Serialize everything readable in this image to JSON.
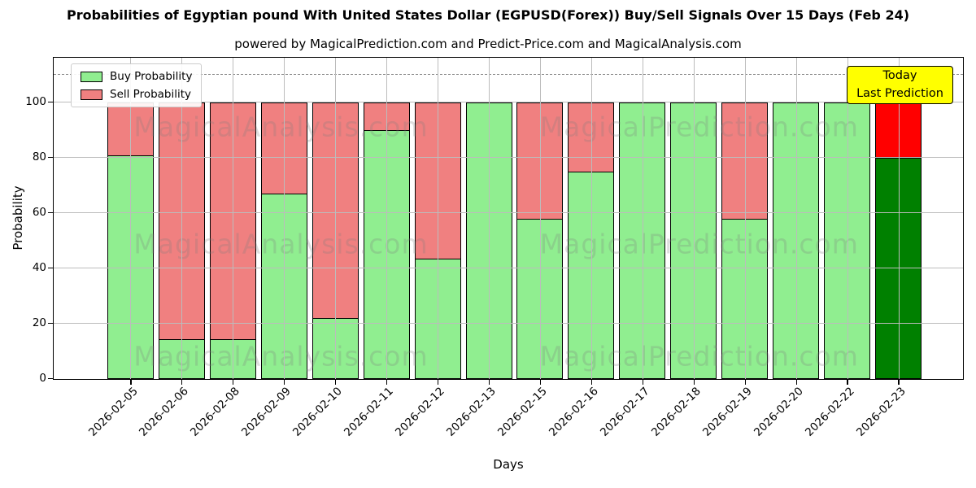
{
  "title": "Probabilities of Egyptian pound With United States Dollar (EGPUSD(Forex)) Buy/Sell Signals Over 15 Days (Feb 24)",
  "subtitle": "powered by MagicalPrediction.com and Predict-Price.com and MagicalAnalysis.com",
  "axes": {
    "ylabel": "Probability",
    "xlabel": "Days",
    "yticks": [
      0,
      20,
      40,
      60,
      80,
      100
    ],
    "ymax": 116,
    "dashed_line_y": 110
  },
  "legend": [
    {
      "label": "Buy Probability",
      "color": "#90EE90"
    },
    {
      "label": "Sell Probability",
      "color": "#F08080"
    }
  ],
  "annotation": {
    "line1": "Today",
    "line2": "Last Prediction",
    "bg": "#FFFF00"
  },
  "watermarks": {
    "left": "MagicalAnalysis.com",
    "right": "MagicalPrediction.com"
  },
  "colors": {
    "buy": "#90EE90",
    "sell": "#F08080",
    "buy_today": "#008000",
    "sell_today": "#FF0000",
    "grid": "#bcbcbc",
    "edge": "#000000"
  },
  "chart_data": {
    "type": "bar",
    "stacked": true,
    "title": "Probabilities of Egyptian pound With United States Dollar (EGPUSD(Forex)) Buy/Sell Signals Over 15 Days (Feb 24)",
    "xlabel": "Days",
    "ylabel": "Probability",
    "ylim": [
      0,
      116
    ],
    "grid": true,
    "legend_position": "upper left",
    "categories": [
      "2026-02-05",
      "2026-02-06",
      "2026-02-08",
      "2026-02-09",
      "2026-02-10",
      "2026-02-11",
      "2026-02-12",
      "2026-02-13",
      "2026-02-15",
      "2026-02-16",
      "2026-02-17",
      "2026-02-18",
      "2026-02-19",
      "2026-02-20",
      "2026-02-22",
      "2026-02-23"
    ],
    "series": [
      {
        "name": "Buy Probability",
        "values": [
          81,
          14.5,
          14.5,
          67,
          22,
          90,
          43.5,
          100,
          58,
          75,
          100,
          100,
          58,
          100,
          100,
          80
        ]
      },
      {
        "name": "Sell Probability",
        "values": [
          19,
          85.5,
          85.5,
          33,
          78,
          10,
          56.5,
          0,
          42,
          25,
          0,
          0,
          42,
          0,
          0,
          20
        ]
      }
    ],
    "emphasized_bar_index": 15,
    "dashed_reference_line_y": 110
  }
}
